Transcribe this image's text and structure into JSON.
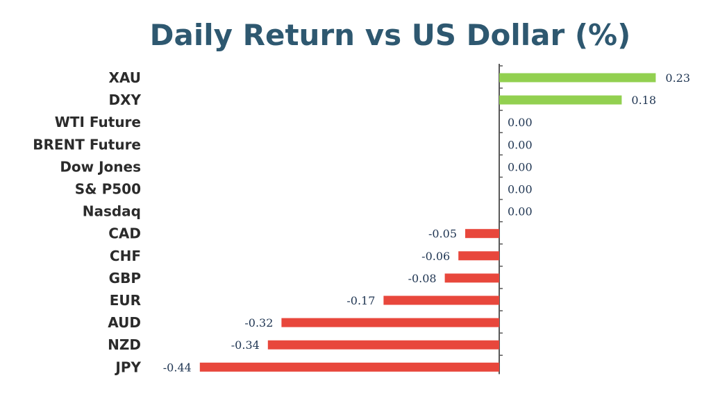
{
  "chart_data": {
    "type": "bar",
    "orientation": "horizontal",
    "title": "Daily Return vs US Dollar (%)",
    "categories": [
      "XAU",
      "DXY",
      "WTI Future",
      "BRENT Future",
      "Dow Jones",
      "S& P500",
      "Nasdaq",
      "CAD",
      "CHF",
      "GBP",
      "EUR",
      "AUD",
      "NZD",
      "JPY"
    ],
    "values": [
      0.23,
      0.18,
      0.0,
      0.0,
      0.0,
      0.0,
      0.0,
      -0.05,
      -0.06,
      -0.08,
      -0.17,
      -0.32,
      -0.34,
      -0.44
    ],
    "value_labels": [
      "0.23",
      "0.18",
      "0.00",
      "0.00",
      "0.00",
      "0.00",
      "0.00",
      "-0.05",
      "-0.06",
      "-0.08",
      "-0.17",
      "-0.32",
      "-0.34",
      "-0.44"
    ],
    "xlim": [
      -0.44,
      0.23
    ],
    "colors": {
      "positive": "#92d050",
      "negative": "#e8473c",
      "axis": "#595959"
    },
    "grid": false,
    "legend": "none"
  }
}
